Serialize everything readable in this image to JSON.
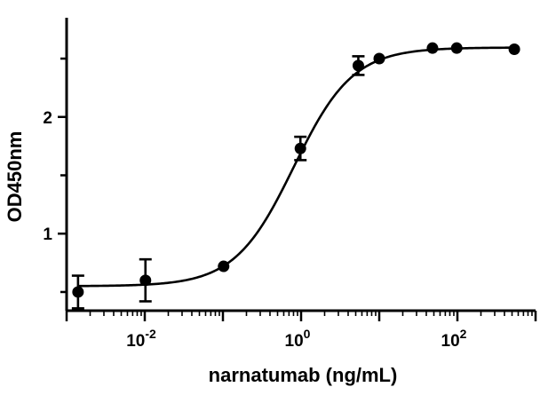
{
  "chart_data": {
    "type": "scatter",
    "xlabel": "narnatumab (ng/mL)",
    "ylabel": "OD450nm",
    "x_scale": "log",
    "xlim": [
      0.001,
      1000
    ],
    "ylim": [
      0.34,
      2.85
    ],
    "x_ticks": [
      {
        "value": 0.01,
        "base": "10",
        "exp": "-2"
      },
      {
        "value": 1,
        "base": "10",
        "exp": "0"
      },
      {
        "value": 100,
        "base": "10",
        "exp": "2"
      }
    ],
    "y_ticks": [
      {
        "value": 1,
        "label": "1"
      },
      {
        "value": 2,
        "label": "2"
      }
    ],
    "y_minor_ticks": [
      0.5,
      1.5,
      2.5
    ],
    "grid": false,
    "series": [
      {
        "points": [
          {
            "x": 0.0014,
            "y": 0.5,
            "err": 0.14
          },
          {
            "x": 0.0102,
            "y": 0.6,
            "err": 0.18
          },
          {
            "x": 0.102,
            "y": 0.72,
            "err": 0
          },
          {
            "x": 0.98,
            "y": 1.73,
            "err": 0.1
          },
          {
            "x": 5.4,
            "y": 2.44,
            "err": 0.08
          },
          {
            "x": 10,
            "y": 2.5,
            "err": 0
          },
          {
            "x": 48,
            "y": 2.59,
            "err": 0
          },
          {
            "x": 98,
            "y": 2.59,
            "err": 0
          },
          {
            "x": 535,
            "y": 2.58,
            "err": 0
          }
        ],
        "fit": {
          "bottom": 0.55,
          "top": 2.595,
          "logEC50": -0.093,
          "hill": 1.15
        }
      }
    ]
  }
}
